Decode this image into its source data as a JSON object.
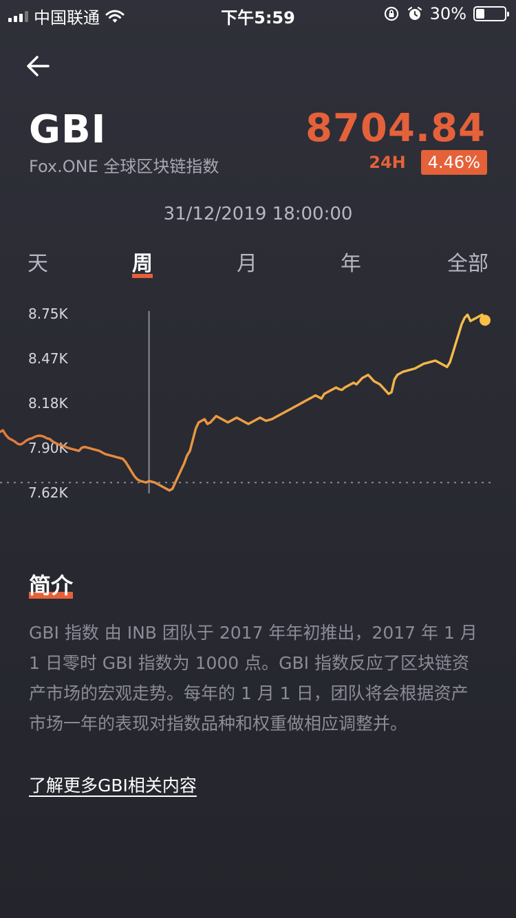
{
  "status_bar": {
    "carrier": "中国联通",
    "time": "下午5:59",
    "battery": "30%",
    "battery_level": 0.3,
    "icons": [
      "signal-icon",
      "wifi-icon",
      "rotation-lock-icon",
      "alarm-icon",
      "battery-icon"
    ]
  },
  "header": {
    "symbol": "GBI",
    "name": "Fox.ONE 全球区块链指数",
    "price": "8704.84",
    "change_label": "24H",
    "change_value": "4.46%"
  },
  "timestamp": "31/12/2019 18:00:00",
  "tabs": [
    {
      "label": "天",
      "active": false
    },
    {
      "label": "周",
      "active": true
    },
    {
      "label": "月",
      "active": false
    },
    {
      "label": "年",
      "active": false
    },
    {
      "label": "全部",
      "active": false
    }
  ],
  "colors": {
    "accent": "#e5613a",
    "line_start": "#e07a3c",
    "line_end": "#f7c04a"
  },
  "chart_data": {
    "type": "line",
    "yticks": [
      "8.75K",
      "8.47K",
      "8.18K",
      "7.90K",
      "7.62K"
    ],
    "ylim": [
      7620,
      8750
    ],
    "baseline": 7680,
    "cursor_index": 51,
    "values": [
      8000,
      8010,
      7980,
      7960,
      7950,
      7940,
      7925,
      7920,
      7930,
      7945,
      7955,
      7960,
      7970,
      7975,
      7975,
      7970,
      7960,
      7955,
      7940,
      7930,
      7920,
      7915,
      7910,
      7900,
      7895,
      7890,
      7885,
      7880,
      7900,
      7905,
      7900,
      7895,
      7890,
      7885,
      7880,
      7870,
      7860,
      7855,
      7850,
      7845,
      7840,
      7835,
      7830,
      7810,
      7780,
      7750,
      7720,
      7700,
      7690,
      7685,
      7680,
      7690,
      7685,
      7680,
      7670,
      7660,
      7650,
      7640,
      7630,
      7640,
      7680,
      7720,
      7760,
      7800,
      7850,
      7880,
      7950,
      8020,
      8060,
      8070,
      8080,
      8050,
      8060,
      8080,
      8100,
      8090,
      8080,
      8070,
      8060,
      8070,
      8080,
      8090,
      8080,
      8070,
      8060,
      8050,
      8060,
      8070,
      8080,
      8090,
      8080,
      8070,
      8075,
      8080,
      8090,
      8100,
      8110,
      8120,
      8130,
      8140,
      8150,
      8160,
      8170,
      8180,
      8190,
      8200,
      8210,
      8220,
      8230,
      8220,
      8210,
      8240,
      8250,
      8260,
      8270,
      8280,
      8270,
      8265,
      8280,
      8290,
      8300,
      8310,
      8300,
      8320,
      8340,
      8350,
      8360,
      8340,
      8320,
      8310,
      8300,
      8280,
      8260,
      8240,
      8250,
      8330,
      8360,
      8370,
      8380,
      8385,
      8390,
      8395,
      8400,
      8410,
      8420,
      8430,
      8435,
      8440,
      8445,
      8450,
      8440,
      8430,
      8420,
      8410,
      8440,
      8500,
      8560,
      8620,
      8680,
      8720,
      8740,
      8700,
      8710,
      8720,
      8730,
      8740,
      8705
    ]
  },
  "intro": {
    "title": "简介",
    "text": "GBI 指数 由 INB 团队于 2017 年年初推出，2017 年 1 月 1 日零时 GBI 指数为 1000 点。GBI 指数反应了区块链资产市场的宏观走势。每年的 1 月 1 日，团队将会根据资产市场一年的表现对指数品种和权重做相应调整并。",
    "link": "了解更多GBI相关内容"
  }
}
